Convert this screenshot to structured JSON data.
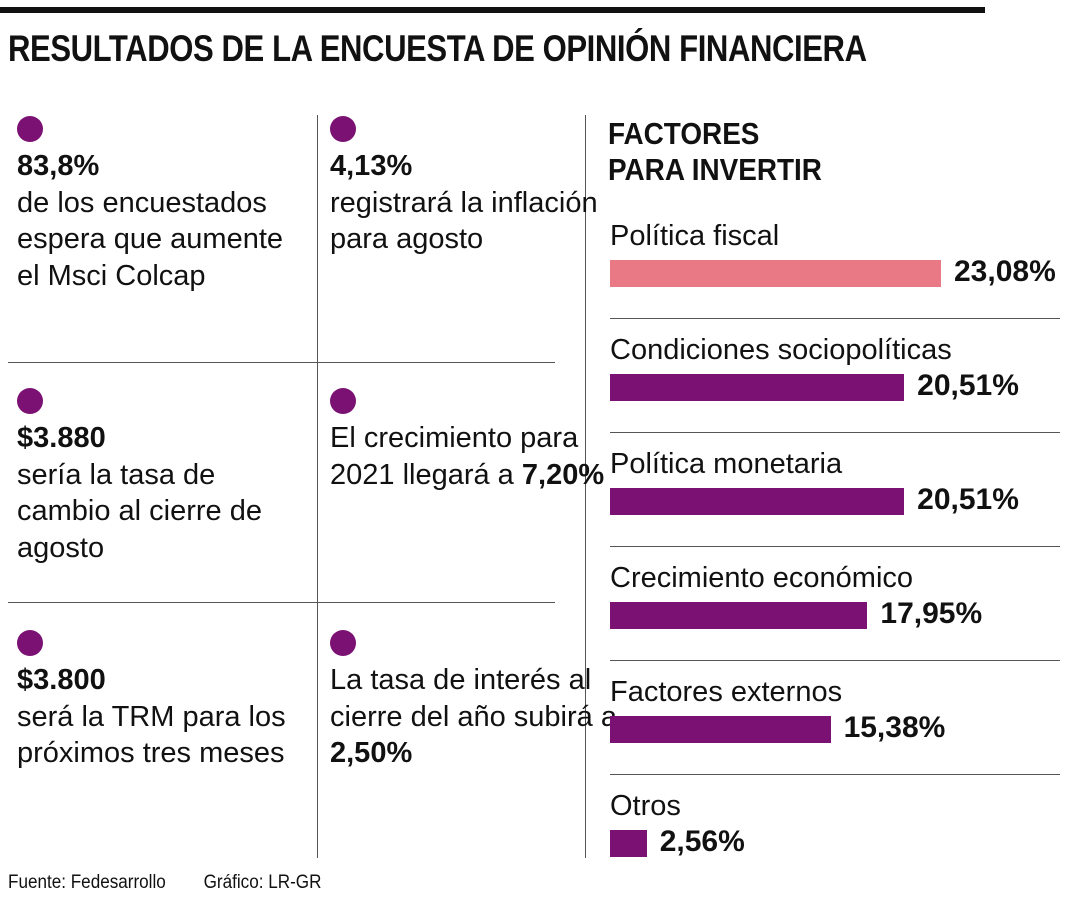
{
  "title": "RESULTADOS DE LA ENCUESTA DE OPINIÓN FINANCIERA",
  "cells": [
    {
      "bold_first": "83,8%",
      "text": "de los encuestados espera que aumente el Msci Colcap"
    },
    {
      "bold_first": "4,13%",
      "text": "registrará la inflación para agosto"
    },
    {
      "bold_first": "$3.880",
      "text": "sería la tasa de cambio al cierre de agosto"
    },
    {
      "text": "El crecimiento para 2021 llegará a",
      "bold_last": "7,20%"
    },
    {
      "bold_first": "$3.800",
      "text": "será la TRM para los próximos tres meses"
    },
    {
      "text": "La tasa de interés al cierre del año subirá a",
      "bold_last": "2,50%"
    }
  ],
  "chart_data": {
    "type": "bar",
    "title": "FACTORES PARA INVERTIR",
    "title_lines": [
      "FACTORES",
      "PARA INVERTIR"
    ],
    "categories": [
      "Política fiscal",
      "Condiciones sociopolíticas",
      "Política monetaria",
      "Crecimiento económico",
      "Factores externos",
      "Otros"
    ],
    "values": [
      23.08,
      20.51,
      20.51,
      17.95,
      15.38,
      2.56
    ],
    "labels": [
      "23,08%",
      "20,51%",
      "20,51%",
      "17,95%",
      "15,38%",
      "2,56%"
    ],
    "colors": [
      "#e87985",
      "#7a1173",
      "#7a1173",
      "#7a1173",
      "#7a1173",
      "#7a1173"
    ],
    "unit": "%"
  },
  "footer": {
    "source": "Fuente: Fedesarrollo",
    "credit": "Gráfico: LR-GR"
  }
}
